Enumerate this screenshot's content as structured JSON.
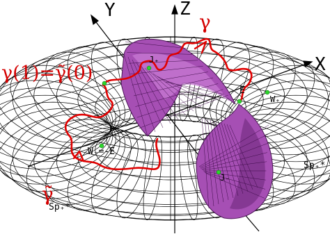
{
  "axes": {
    "x": "X",
    "y": "Y",
    "z": "Z"
  },
  "curves": {
    "gamma": "γ",
    "gamma_tilde": "γ̃",
    "junction": "γ(1)=γ̃(0)"
  },
  "points": {
    "E": "E",
    "W_plus": "W₊",
    "W_minus": "W₋=-E",
    "J_plus": "J₊",
    "J_minus": "J₋"
  },
  "sets": {
    "sp_plus_right": "Sp₊*",
    "sp_plus_bottom": "Sp₊*"
  },
  "colors": {
    "curve": "#e00000",
    "surface": "#a64fb4",
    "surface_dark": "#6f2a7d",
    "points": "#2bd62b",
    "mesh": "#000000"
  }
}
